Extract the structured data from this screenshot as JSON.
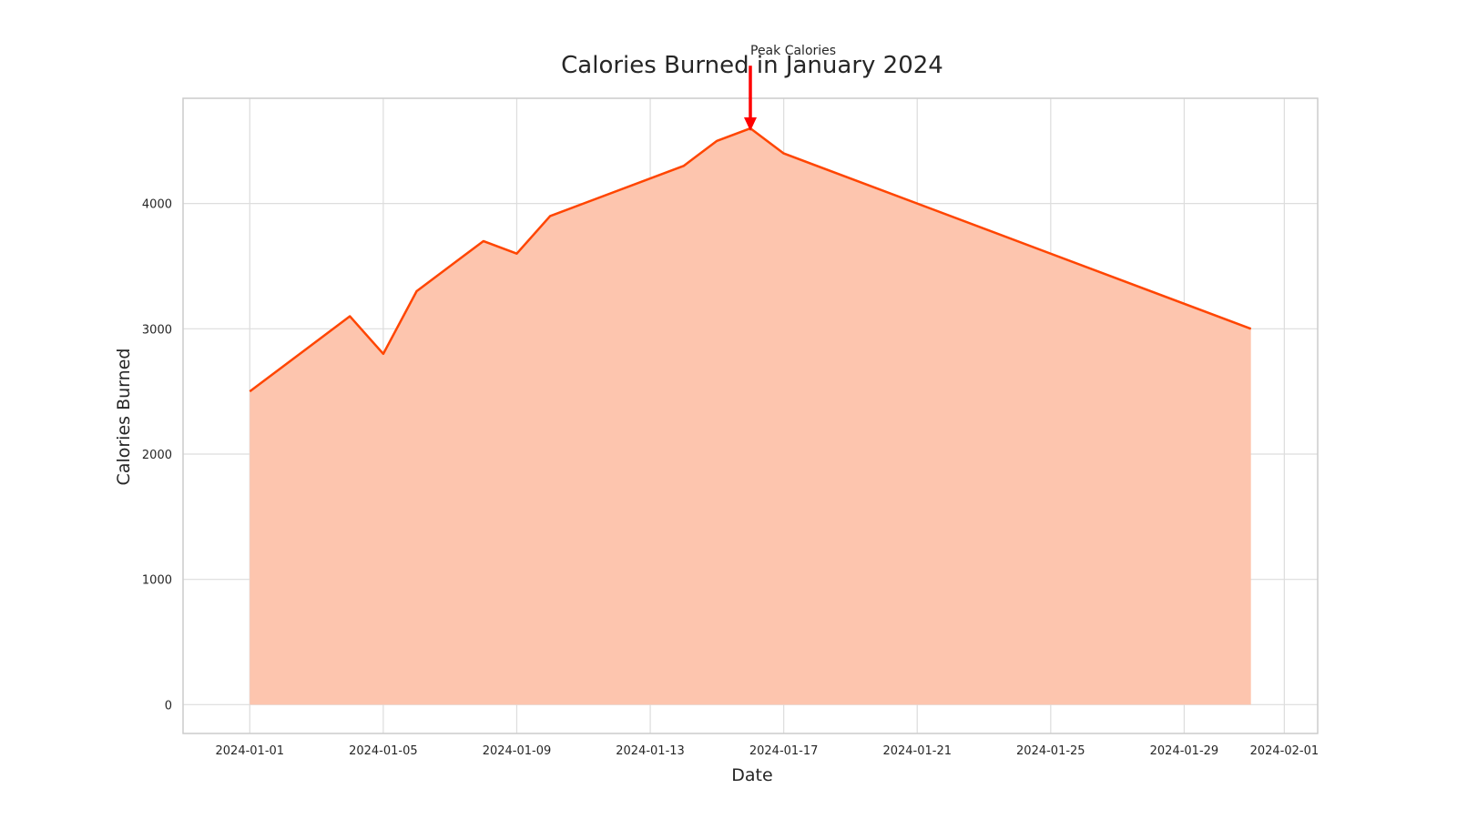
{
  "chart_data": {
    "type": "area",
    "title": "Calories Burned in January 2024",
    "xlabel": "Date",
    "ylabel": "Calories Burned",
    "x": [
      "2024-01-01",
      "2024-01-04",
      "2024-01-05",
      "2024-01-06",
      "2024-01-08",
      "2024-01-09",
      "2024-01-10",
      "2024-01-14",
      "2024-01-15",
      "2024-01-16",
      "2024-01-17",
      "2024-01-31"
    ],
    "series": [
      {
        "values": [
          2500,
          3100,
          2800,
          3300,
          3700,
          3600,
          3900,
          4300,
          4500,
          4600,
          4400,
          3000
        ],
        "line_color": "#ff4500",
        "fill_color": "#fdc5ae"
      }
    ],
    "xlim": [
      "2023-12-30",
      "2024-02-02"
    ],
    "ylim": [
      -230,
      4840
    ],
    "x_ticks": [
      "2024-01-01",
      "2024-01-05",
      "2024-01-09",
      "2024-01-13",
      "2024-01-17",
      "2024-01-21",
      "2024-01-25",
      "2024-01-29",
      "2024-02-01"
    ],
    "y_ticks": [
      0,
      1000,
      2000,
      3000,
      4000
    ],
    "y_tick_labels": [
      "0",
      "1000",
      "2000",
      "3000",
      "4000"
    ],
    "grid": true,
    "grid_color": "#dddddd",
    "spine_color": "#cccccc",
    "annotations": [
      {
        "text": "Peak Calories",
        "x": "2024-01-16",
        "y": 4600,
        "text_y": 5100,
        "arrow_color": "#ff0000"
      }
    ]
  }
}
